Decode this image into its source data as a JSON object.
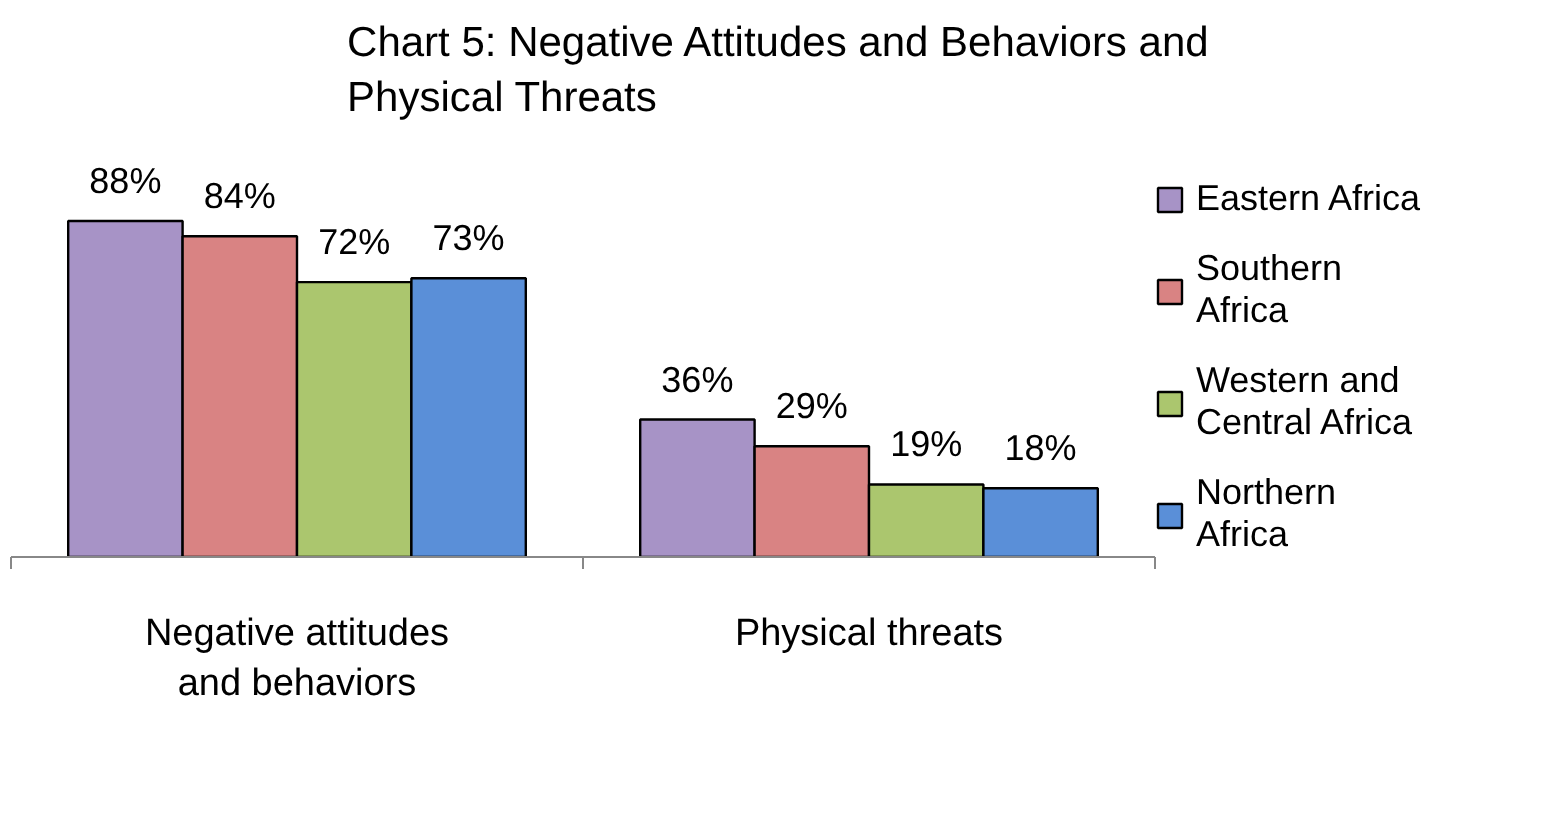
{
  "chart_data": {
    "type": "bar",
    "title": "Chart  5: Negative Attitudes and Behaviors and Physical Threats",
    "categories": [
      "Negative attitudes  and behaviors",
      "Physical threats"
    ],
    "series": [
      {
        "name": "Eastern Africa",
        "color": "#a793c6",
        "values": [
          88,
          36
        ],
        "value_labels": [
          "88%",
          "36%"
        ]
      },
      {
        "name": "Southern Africa",
        "color": "#d98383",
        "values": [
          84,
          29
        ],
        "value_labels": [
          "84%",
          "29%"
        ]
      },
      {
        "name": "Western and Central Africa",
        "color": "#abc66e",
        "values": [
          72,
          19
        ],
        "value_labels": [
          "72%",
          "19%"
        ]
      },
      {
        "name": "Northern Africa",
        "color": "#5a8fd8",
        "values": [
          73,
          18
        ],
        "value_labels": [
          "73%",
          "18%"
        ]
      }
    ],
    "legend": "right",
    "grid": false
  }
}
